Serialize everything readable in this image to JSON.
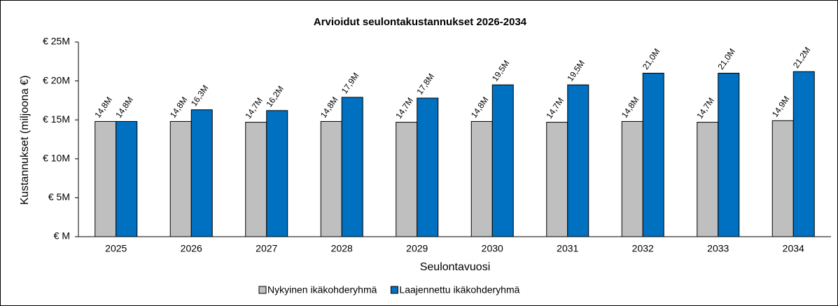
{
  "chart_data": {
    "type": "bar",
    "title": "Arvioidut seulontakustannukset 2026-2034",
    "x_label": "Seulontavuosi",
    "y_label": "Kustannukset (miljoona €)",
    "categories": [
      "2025",
      "2026",
      "2027",
      "2028",
      "2029",
      "2030",
      "2031",
      "2032",
      "2033",
      "2034"
    ],
    "series": [
      {
        "name": "Nykyinen ikäkohderyhmä",
        "color": "#bfbfbf",
        "values": [
          14.8,
          14.8,
          14.7,
          14.8,
          14.7,
          14.8,
          14.7,
          14.8,
          14.7,
          14.9
        ],
        "value_labels": [
          "14,8M",
          "14,8M",
          "14,7M",
          "14,8M",
          "14,7M",
          "14,8M",
          "14,7M",
          "14,8M",
          "14,7M",
          "14,9M"
        ]
      },
      {
        "name": "Laajennettu ikäkohderyhmä",
        "color": "#0070c0",
        "values": [
          14.8,
          16.3,
          16.2,
          17.9,
          17.8,
          19.5,
          19.5,
          21.0,
          21.0,
          21.2
        ],
        "value_labels": [
          "14,8M",
          "16,3M",
          "16,2M",
          "17,9M",
          "17,8M",
          "19,5M",
          "19,5M",
          "21,0M",
          "21,0M",
          "21,2M"
        ]
      }
    ],
    "ylim": [
      0,
      25
    ],
    "yticks": [
      {
        "value": 0,
        "label": "€ M"
      },
      {
        "value": 5,
        "label": "€ 5M"
      },
      {
        "value": 10,
        "label": "€ 10M"
      },
      {
        "value": 15,
        "label": "€ 15M"
      },
      {
        "value": 20,
        "label": "€ 20M"
      },
      {
        "value": 25,
        "label": "€ 25M"
      }
    ],
    "legend": "bottom"
  }
}
